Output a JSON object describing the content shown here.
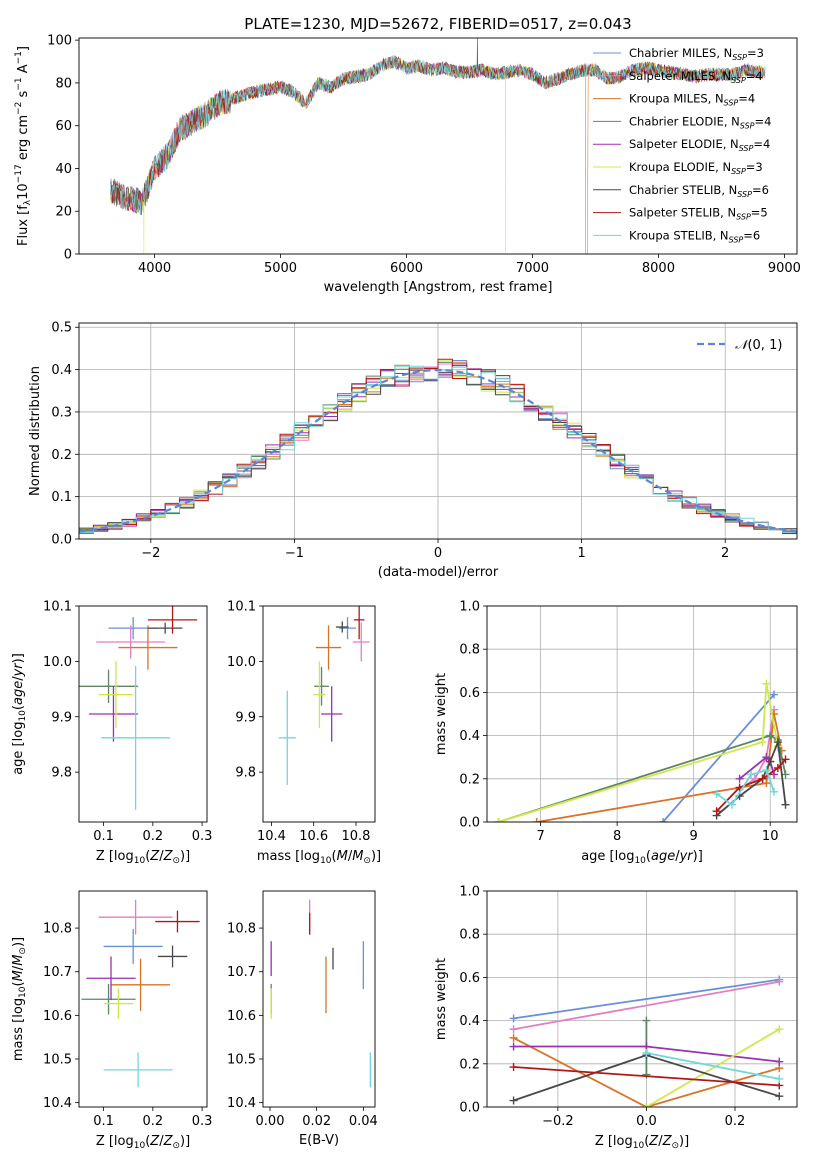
{
  "figure": {
    "title": "PLATE=1230, MJD=52672, FIBERID=0517, z=0.043"
  },
  "chart_data": [
    {
      "id": "spectrum",
      "type": "line",
      "title": "PLATE=1230, MJD=52672, FIBERID=0517, z=0.043",
      "xlabel": "wavelength [Angstrom, rest frame]",
      "ylabel": "Flux [f_λ10^-17 erg cm^-2 s^-1 A^-1]",
      "xlim": [
        3400,
        9100
      ],
      "ylim": [
        0,
        101
      ],
      "xticks": [
        4000,
        5000,
        6000,
        7000,
        8000,
        9000
      ],
      "yticks": [
        0,
        20,
        40,
        60,
        80,
        100
      ],
      "x_range_data": [
        3650,
        8850
      ],
      "envelope": {
        "x": [
          3650,
          3700,
          3800,
          3900,
          4000,
          4100,
          4200,
          4300,
          4400,
          4500,
          4600,
          4700,
          4800,
          4900,
          5000,
          5100,
          5200,
          5300,
          5400,
          5500,
          5600,
          5700,
          5800,
          5900,
          6000,
          6100,
          6200,
          6300,
          6400,
          6500,
          6600,
          6700,
          6800,
          6900,
          7000,
          7100,
          7200,
          7300,
          7400,
          7500,
          7600,
          7700,
          7800,
          7900,
          8000,
          8100,
          8200,
          8300,
          8400,
          8500,
          8600,
          8700,
          8800,
          8850
        ],
        "y": [
          30,
          28,
          26,
          24,
          40,
          46,
          58,
          62,
          65,
          70,
          72,
          74,
          76,
          77,
          78,
          76,
          70,
          80,
          78,
          82,
          83,
          84,
          88,
          90,
          87,
          88,
          86,
          87,
          85,
          85,
          86,
          84,
          85,
          86,
          84,
          80,
          82,
          84,
          86,
          86,
          82,
          83,
          86,
          87,
          86,
          85,
          84,
          83,
          84,
          84,
          84,
          86,
          85,
          85
        ]
      },
      "dips": [
        {
          "x": 3915,
          "y": 0,
          "series": "Kroupa ELODIE"
        },
        {
          "x": 6785,
          "y": 0,
          "series": "Kroupa ELODIE"
        },
        {
          "x": 7420,
          "y": 0,
          "series": "Kroupa MILES"
        }
      ],
      "series": [
        {
          "name": "Chabrier MILES, N_SSP=3",
          "color": "#6a8fd8"
        },
        {
          "name": "Salpeter MILES, N_SSP=4",
          "color": "#e07fc4"
        },
        {
          "name": "Kroupa MILES, N_SSP=4",
          "color": "#d97326"
        },
        {
          "name": "Chabrier ELODIE, N_SSP=4",
          "color": "#5e8566"
        },
        {
          "name": "Salpeter ELODIE, N_SSP=4",
          "color": "#9a30b0"
        },
        {
          "name": "Kroupa ELODIE, N_SSP=3",
          "color": "#cde84a"
        },
        {
          "name": "Chabrier STELIB, N_SSP=6",
          "color": "#484848"
        },
        {
          "name": "Salpeter STELIB, N_SSP=5",
          "color": "#b01818"
        },
        {
          "name": "Kroupa STELIB, N_SSP=6",
          "color": "#6fd8dc"
        }
      ]
    },
    {
      "id": "residuals",
      "type": "line",
      "xlabel": "(data-model)/error",
      "ylabel": "Normed distribution",
      "xlim": [
        -2.5,
        2.5
      ],
      "ylim": [
        0,
        0.51
      ],
      "xticks": [
        -2,
        -1,
        0,
        1,
        2
      ],
      "yticks": [
        0.0,
        0.1,
        0.2,
        0.3,
        0.4,
        0.5
      ],
      "grid": true,
      "legend": "N(0,1)",
      "legend_position": "top-right",
      "hist_bin_width": 0.1,
      "hist_noise_amplitude": 0.06,
      "gauss_color": "#5b86d8"
    },
    {
      "id": "age_vs_Z",
      "type": "scatter",
      "xlabel": "Z [log10(Z/Z⊙)]",
      "ylabel": "age [log10(age/yr)]",
      "xlim": [
        0.05,
        0.31
      ],
      "ylim": [
        9.71,
        10.1
      ],
      "xticks": [
        0.1,
        0.2,
        0.3
      ],
      "yticks": [
        9.8,
        9.9,
        10.0,
        10.1
      ],
      "points": [
        {
          "x": 0.16,
          "xerr": 0.05,
          "y": 10.06,
          "yerr": 0.02,
          "color": "#6a8fd8"
        },
        {
          "x": 0.155,
          "xerr": 0.07,
          "y": 10.035,
          "yerr": 0.03,
          "color": "#e07fc4"
        },
        {
          "x": 0.19,
          "xerr": 0.06,
          "y": 10.025,
          "yerr": 0.04,
          "color": "#d97326"
        },
        {
          "x": 0.11,
          "xerr": 0.06,
          "y": 9.955,
          "yerr": 0.03,
          "color": "#5e8566"
        },
        {
          "x": 0.12,
          "xerr": 0.05,
          "y": 9.905,
          "yerr": 0.05,
          "color": "#9a30b0"
        },
        {
          "x": 0.125,
          "xerr": 0.035,
          "y": 9.94,
          "yerr": 0.06,
          "color": "#cde84a"
        },
        {
          "x": 0.225,
          "xerr": 0.035,
          "y": 10.06,
          "yerr": 0.01,
          "color": "#484848"
        },
        {
          "x": 0.24,
          "xerr": 0.05,
          "y": 10.075,
          "yerr": 0.025,
          "color": "#b01818"
        },
        {
          "x": 0.165,
          "xerr": 0.07,
          "y": 9.862,
          "yerr": 0.13,
          "color": "#6fd8dc"
        }
      ]
    },
    {
      "id": "age_vs_mass",
      "type": "scatter",
      "xlabel": "mass [log10(M/M⊙)]",
      "ylabel": "",
      "xlim": [
        10.36,
        10.89
      ],
      "ylim": [
        9.71,
        10.1
      ],
      "xticks": [
        10.4,
        10.6,
        10.8
      ],
      "yticks": [
        9.8,
        9.9,
        10.0,
        10.1
      ],
      "points": [
        {
          "x": 10.76,
          "xerr": 0.04,
          "y": 10.06,
          "yerr": 0.02,
          "color": "#6a8fd8"
        },
        {
          "x": 10.825,
          "xerr": 0.04,
          "y": 10.035,
          "yerr": 0.035,
          "color": "#e07fc4"
        },
        {
          "x": 10.67,
          "xerr": 0.06,
          "y": 10.025,
          "yerr": 0.04,
          "color": "#d97326"
        },
        {
          "x": 10.637,
          "xerr": 0.035,
          "y": 9.955,
          "yerr": 0.035,
          "color": "#5e8566"
        },
        {
          "x": 10.685,
          "xerr": 0.05,
          "y": 9.905,
          "yerr": 0.05,
          "color": "#9a30b0"
        },
        {
          "x": 10.627,
          "xerr": 0.03,
          "y": 9.94,
          "yerr": 0.06,
          "color": "#cde84a"
        },
        {
          "x": 10.735,
          "xerr": 0.03,
          "y": 10.062,
          "yerr": 0.01,
          "color": "#484848"
        },
        {
          "x": 10.815,
          "xerr": 0.025,
          "y": 10.075,
          "yerr": 0.035,
          "color": "#b01818"
        },
        {
          "x": 10.475,
          "xerr": 0.04,
          "y": 9.862,
          "yerr": 0.085,
          "color": "#6fd8dc"
        }
      ]
    },
    {
      "id": "weight_vs_age",
      "type": "line",
      "xlabel": "age [log10(age/yr)]",
      "ylabel": "mass weight",
      "xlim": [
        6.3,
        10.35
      ],
      "ylim": [
        0,
        1.0
      ],
      "xticks": [
        7,
        8,
        9,
        10
      ],
      "yticks": [
        0.0,
        0.2,
        0.4,
        0.6,
        0.8,
        1.0
      ],
      "grid": true,
      "series": [
        {
          "name": "Chabrier MILES",
          "color": "#6a8fd8",
          "x": [
            8.6,
            10.05
          ],
          "y": [
            0.0,
            0.59
          ]
        },
        {
          "name": "Salpeter MILES",
          "color": "#e07fc4",
          "x": [
            9.6,
            9.8,
            9.95,
            10.05
          ],
          "y": [
            0.15,
            0.2,
            0.3,
            0.52
          ]
        },
        {
          "name": "Kroupa MILES",
          "color": "#d97326",
          "x": [
            6.95,
            9.95,
            10.05,
            10.15
          ],
          "y": [
            0.0,
            0.18,
            0.5,
            0.33
          ]
        },
        {
          "name": "Chabrier ELODIE",
          "color": "#5e8566",
          "x": [
            6.45,
            10.0,
            10.1,
            10.2
          ],
          "y": [
            0.0,
            0.4,
            0.38,
            0.22
          ]
        },
        {
          "name": "Salpeter ELODIE",
          "color": "#9a30b0",
          "x": [
            9.6,
            9.95,
            10.0,
            10.05
          ],
          "y": [
            0.2,
            0.3,
            0.28,
            0.22
          ]
        },
        {
          "name": "Kroupa ELODIE",
          "color": "#cde84a",
          "x": [
            6.45,
            9.9,
            9.95,
            10.1
          ],
          "y": [
            0.0,
            0.37,
            0.64,
            0.35
          ]
        },
        {
          "name": "Chabrier STELIB",
          "color": "#484848",
          "x": [
            9.3,
            9.6,
            9.9,
            10.0,
            10.1,
            10.2
          ],
          "y": [
            0.03,
            0.12,
            0.2,
            0.28,
            0.37,
            0.08
          ]
        },
        {
          "name": "Salpeter STELIB",
          "color": "#b01818",
          "x": [
            9.3,
            9.6,
            9.9,
            10.1,
            10.2
          ],
          "y": [
            0.05,
            0.16,
            0.2,
            0.25,
            0.29
          ]
        },
        {
          "name": "Kroupa STELIB",
          "color": "#6fd8dc",
          "x": [
            9.3,
            9.5,
            9.75,
            9.95,
            10.05
          ],
          "y": [
            0.13,
            0.08,
            0.22,
            0.24,
            0.14
          ]
        }
      ]
    },
    {
      "id": "mass_vs_Z",
      "type": "scatter",
      "xlabel": "Z [log10(Z/Z⊙)]",
      "ylabel": "mass [log10(M/M⊙)]",
      "xlim": [
        0.05,
        0.31
      ],
      "ylim": [
        10.39,
        10.885
      ],
      "xticks": [
        0.1,
        0.2,
        0.3
      ],
      "yticks": [
        10.4,
        10.5,
        10.6,
        10.7,
        10.8
      ],
      "points": [
        {
          "x": 0.16,
          "xerr": 0.06,
          "y": 10.758,
          "yerr": 0.04,
          "color": "#6a8fd8"
        },
        {
          "x": 0.165,
          "xerr": 0.075,
          "y": 10.825,
          "yerr": 0.04,
          "color": "#e07fc4"
        },
        {
          "x": 0.175,
          "xerr": 0.06,
          "y": 10.67,
          "yerr": 0.06,
          "color": "#d97326"
        },
        {
          "x": 0.11,
          "xerr": 0.055,
          "y": 10.637,
          "yerr": 0.035,
          "color": "#5e8566"
        },
        {
          "x": 0.115,
          "xerr": 0.05,
          "y": 10.685,
          "yerr": 0.05,
          "color": "#9a30b0"
        },
        {
          "x": 0.13,
          "xerr": 0.03,
          "y": 10.627,
          "yerr": 0.035,
          "color": "#cde84a"
        },
        {
          "x": 0.24,
          "xerr": 0.03,
          "y": 10.735,
          "yerr": 0.025,
          "color": "#484848"
        },
        {
          "x": 0.25,
          "xerr": 0.045,
          "y": 10.815,
          "yerr": 0.025,
          "color": "#b01818"
        },
        {
          "x": 0.17,
          "xerr": 0.07,
          "y": 10.475,
          "yerr": 0.04,
          "color": "#6fd8dc"
        }
      ]
    },
    {
      "id": "mass_vs_EBV",
      "type": "scatter",
      "xlabel": "E(B-V)",
      "ylabel": "",
      "xlim": [
        -0.003,
        0.045
      ],
      "ylim": [
        10.39,
        10.885
      ],
      "xticks": [
        0.0,
        0.02,
        0.04
      ],
      "yticks": [
        10.4,
        10.5,
        10.6,
        10.7,
        10.8
      ],
      "points": [
        {
          "x": 0.04,
          "xerr": 0.0,
          "y": 10.715,
          "yerr": 0.055,
          "color": "#6a8fd8"
        },
        {
          "x": 0.017,
          "xerr": 0.0,
          "y": 10.825,
          "yerr": 0.04,
          "color": "#e07fc4"
        },
        {
          "x": 0.024,
          "xerr": 0.0,
          "y": 10.67,
          "yerr": 0.065,
          "color": "#d97326"
        },
        {
          "x": 0.0005,
          "xerr": 0.0,
          "y": 10.637,
          "yerr": 0.035,
          "color": "#5e8566"
        },
        {
          "x": 0.0005,
          "xerr": 0.0,
          "y": 10.73,
          "yerr": 0.04,
          "color": "#9a30b0"
        },
        {
          "x": 0.0005,
          "xerr": 0.0,
          "y": 10.627,
          "yerr": 0.035,
          "color": "#cde84a"
        },
        {
          "x": 0.027,
          "xerr": 0.0,
          "y": 10.73,
          "yerr": 0.025,
          "color": "#484848"
        },
        {
          "x": 0.017,
          "xerr": 0.0,
          "y": 10.81,
          "yerr": 0.025,
          "color": "#b01818"
        },
        {
          "x": 0.043,
          "xerr": 0.0,
          "y": 10.475,
          "yerr": 0.04,
          "color": "#6fd8dc"
        }
      ]
    },
    {
      "id": "weight_vs_Z",
      "type": "line",
      "xlabel": "Z [log10(Z/Z⊙)]",
      "ylabel": "mass weight",
      "xlim": [
        -0.36,
        0.34
      ],
      "ylim": [
        0,
        1.0
      ],
      "xticks": [
        -0.2,
        0.0,
        0.2
      ],
      "yticks": [
        0.0,
        0.2,
        0.4,
        0.6,
        0.8,
        1.0
      ],
      "grid": true,
      "series": [
        {
          "name": "Chabrier MILES",
          "color": "#6a8fd8",
          "x": [
            -0.3,
            0.3
          ],
          "y": [
            0.41,
            0.59
          ]
        },
        {
          "name": "Salpeter MILES",
          "color": "#e07fc4",
          "x": [
            -0.3,
            0.3
          ],
          "y": [
            0.36,
            0.58
          ]
        },
        {
          "name": "Kroupa MILES",
          "color": "#d97326",
          "x": [
            -0.3,
            0.0,
            0.3
          ],
          "y": [
            0.32,
            0.0,
            0.18
          ]
        },
        {
          "name": "Chabrier ELODIE",
          "color": "#5e8566",
          "x": [
            0.0,
            0.0
          ],
          "y": [
            0.15,
            0.4
          ]
        },
        {
          "name": "Salpeter ELODIE",
          "color": "#9a30b0",
          "x": [
            -0.3,
            0.0,
            0.3
          ],
          "y": [
            0.28,
            0.28,
            0.21
          ]
        },
        {
          "name": "Kroupa ELODIE",
          "color": "#cde84a",
          "x": [
            0.0,
            0.3
          ],
          "y": [
            0.0,
            0.36
          ]
        },
        {
          "name": "Chabrier STELIB",
          "color": "#484848",
          "x": [
            -0.3,
            0.0,
            0.3
          ],
          "y": [
            0.03,
            0.24,
            0.05
          ]
        },
        {
          "name": "Salpeter STELIB",
          "color": "#b01818",
          "x": [
            -0.3,
            0.3
          ],
          "y": [
            0.185,
            0.1
          ]
        },
        {
          "name": "Kroupa STELIB",
          "color": "#6fd8dc",
          "x": [
            0.0,
            0.3
          ],
          "y": [
            0.25,
            0.13
          ]
        }
      ]
    }
  ]
}
